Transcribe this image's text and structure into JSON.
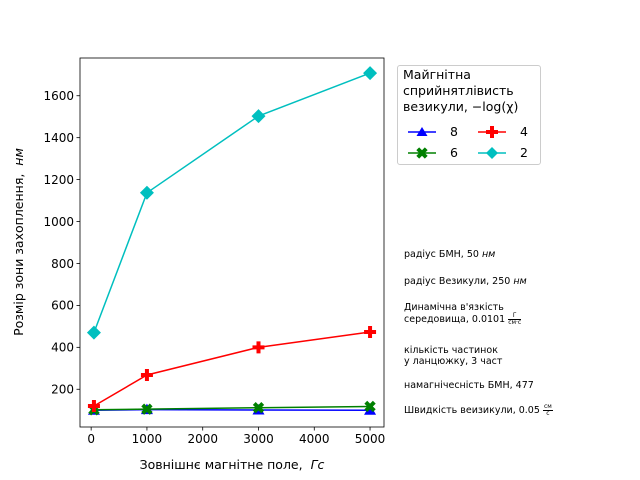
{
  "chart_data": {
    "type": "line",
    "xlabel": "Зовнішнє магнітне поле,",
    "xlabel_unit": "Гс",
    "ylabel": "Розмір зони захоплення,",
    "ylabel_unit": "нм",
    "xlim": [
      -200,
      5250
    ],
    "ylim": [
      20,
      1780
    ],
    "xticks": [
      0,
      1000,
      2000,
      3000,
      4000,
      5000
    ],
    "yticks": [
      200,
      400,
      600,
      800,
      1000,
      1200,
      1400,
      1600
    ],
    "x": [
      50,
      1000,
      3000,
      5000
    ],
    "series": [
      {
        "name": "8",
        "color": "#0000ff",
        "marker": "triangle",
        "values": [
          100,
          103,
          101,
          100
        ]
      },
      {
        "name": "6",
        "color": "#008000",
        "marker": "x-cross",
        "values": [
          102,
          105,
          112,
          118
        ]
      },
      {
        "name": "4",
        "color": "#ff0000",
        "marker": "plus",
        "values": [
          120,
          268,
          400,
          473
        ]
      },
      {
        "name": "2",
        "color": "#00bfbf",
        "marker": "diamond",
        "values": [
          470,
          1137,
          1503,
          1708
        ]
      }
    ],
    "legend": {
      "title_lines": [
        "Майгнітна",
        "сприйнятлівисть",
        "везикули,  −log(χ)"
      ],
      "placement": "outside-top-right",
      "columns": 2
    },
    "grid": false
  },
  "annotations": {
    "radius_bmn_label": "радіус БМН, 50",
    "radius_bmn_unit": "нм",
    "radius_vesicle_label": "радіус Везикули, 250",
    "radius_vesicle_unit": "нм",
    "viscosity_line1": "Динамічна в'язкість",
    "viscosity_line2": "середовища, 0.0101",
    "viscosity_unit_num": "Г",
    "viscosity_unit_den": "см·с",
    "particles_line1": "кількість частинок",
    "particles_line2": "у ланцюжку, 3  част",
    "magnetization_label": "намагнічесність БМН, 477",
    "speed_label": "Швидкість веизикули, 0.05",
    "speed_unit_num": "см",
    "speed_unit_den": "с"
  }
}
